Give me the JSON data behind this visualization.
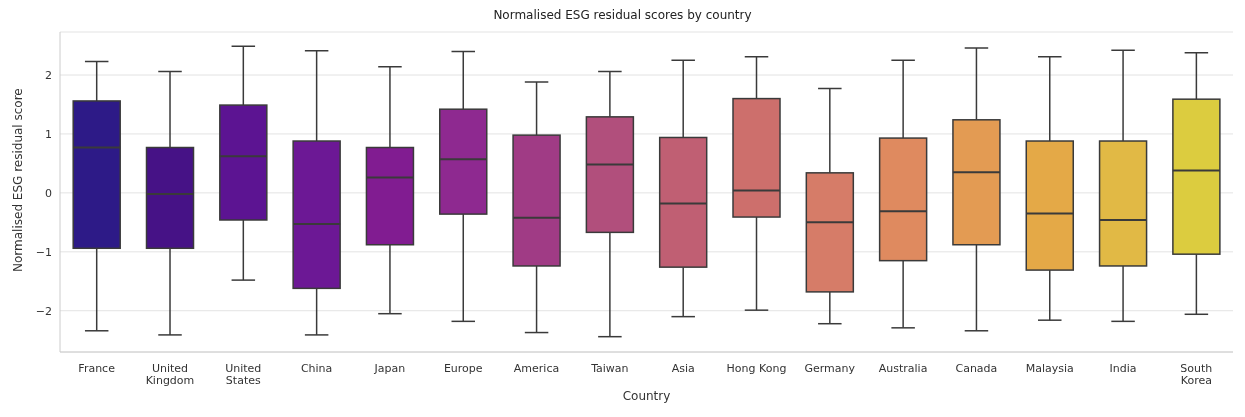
{
  "chart_data": {
    "type": "box",
    "title": "Normalised ESG residual scores by country",
    "xlabel": "Country",
    "ylabel": "Normalised ESG residual score",
    "categories": [
      "France",
      "United Kingdom",
      "United States",
      "China",
      "Japan",
      "Europe",
      "America",
      "Taiwan",
      "Asia",
      "Hong Kong",
      "Germany",
      "Australia",
      "Canada",
      "Malaysia",
      "India",
      "South Korea"
    ],
    "colors": [
      "#2d1a87",
      "#461286",
      "#5c1492",
      "#6c1895",
      "#811c91",
      "#8e2990",
      "#a03b85",
      "#b14f7c",
      "#c05f73",
      "#cd6f6c",
      "#d67c68",
      "#df8a5f",
      "#e39b53",
      "#e4a947",
      "#e1b945",
      "#dccc3f"
    ],
    "boxes": [
      {
        "low": -2.34,
        "q1": -0.94,
        "median": 0.77,
        "q3": 1.56,
        "high": 2.23
      },
      {
        "low": -2.41,
        "q1": -0.94,
        "median": -0.02,
        "q3": 0.77,
        "high": 2.06
      },
      {
        "low": -1.48,
        "q1": -0.46,
        "median": 0.62,
        "q3": 1.49,
        "high": 2.49
      },
      {
        "low": -2.41,
        "q1": -1.62,
        "median": -0.53,
        "q3": 0.88,
        "high": 2.41
      },
      {
        "low": -2.05,
        "q1": -0.88,
        "median": 0.26,
        "q3": 0.77,
        "high": 2.14
      },
      {
        "low": -2.18,
        "q1": -0.36,
        "median": 0.57,
        "q3": 1.42,
        "high": 2.4
      },
      {
        "low": -2.37,
        "q1": -1.24,
        "median": -0.42,
        "q3": 0.98,
        "high": 1.88
      },
      {
        "low": -2.44,
        "q1": -0.67,
        "median": 0.48,
        "q3": 1.29,
        "high": 2.06
      },
      {
        "low": -2.1,
        "q1": -1.26,
        "median": -0.18,
        "q3": 0.94,
        "high": 2.25
      },
      {
        "low": -1.99,
        "q1": -0.41,
        "median": 0.04,
        "q3": 1.6,
        "high": 2.31
      },
      {
        "low": -2.22,
        "q1": -1.68,
        "median": -0.5,
        "q3": 0.34,
        "high": 1.77
      },
      {
        "low": -2.29,
        "q1": -1.15,
        "median": -0.31,
        "q3": 0.93,
        "high": 2.25
      },
      {
        "low": -2.34,
        "q1": -0.88,
        "median": 0.35,
        "q3": 1.24,
        "high": 2.46
      },
      {
        "low": -2.16,
        "q1": -1.31,
        "median": -0.35,
        "q3": 0.88,
        "high": 2.31
      },
      {
        "low": -2.18,
        "q1": -1.24,
        "median": -0.46,
        "q3": 0.88,
        "high": 2.42
      },
      {
        "low": -2.06,
        "q1": -1.04,
        "median": 0.38,
        "q3": 1.59,
        "high": 2.38
      }
    ],
    "ylim": [
      -2.7,
      2.73
    ],
    "yticks": [
      -2,
      -1,
      0,
      1,
      2
    ],
    "grid": "y"
  }
}
